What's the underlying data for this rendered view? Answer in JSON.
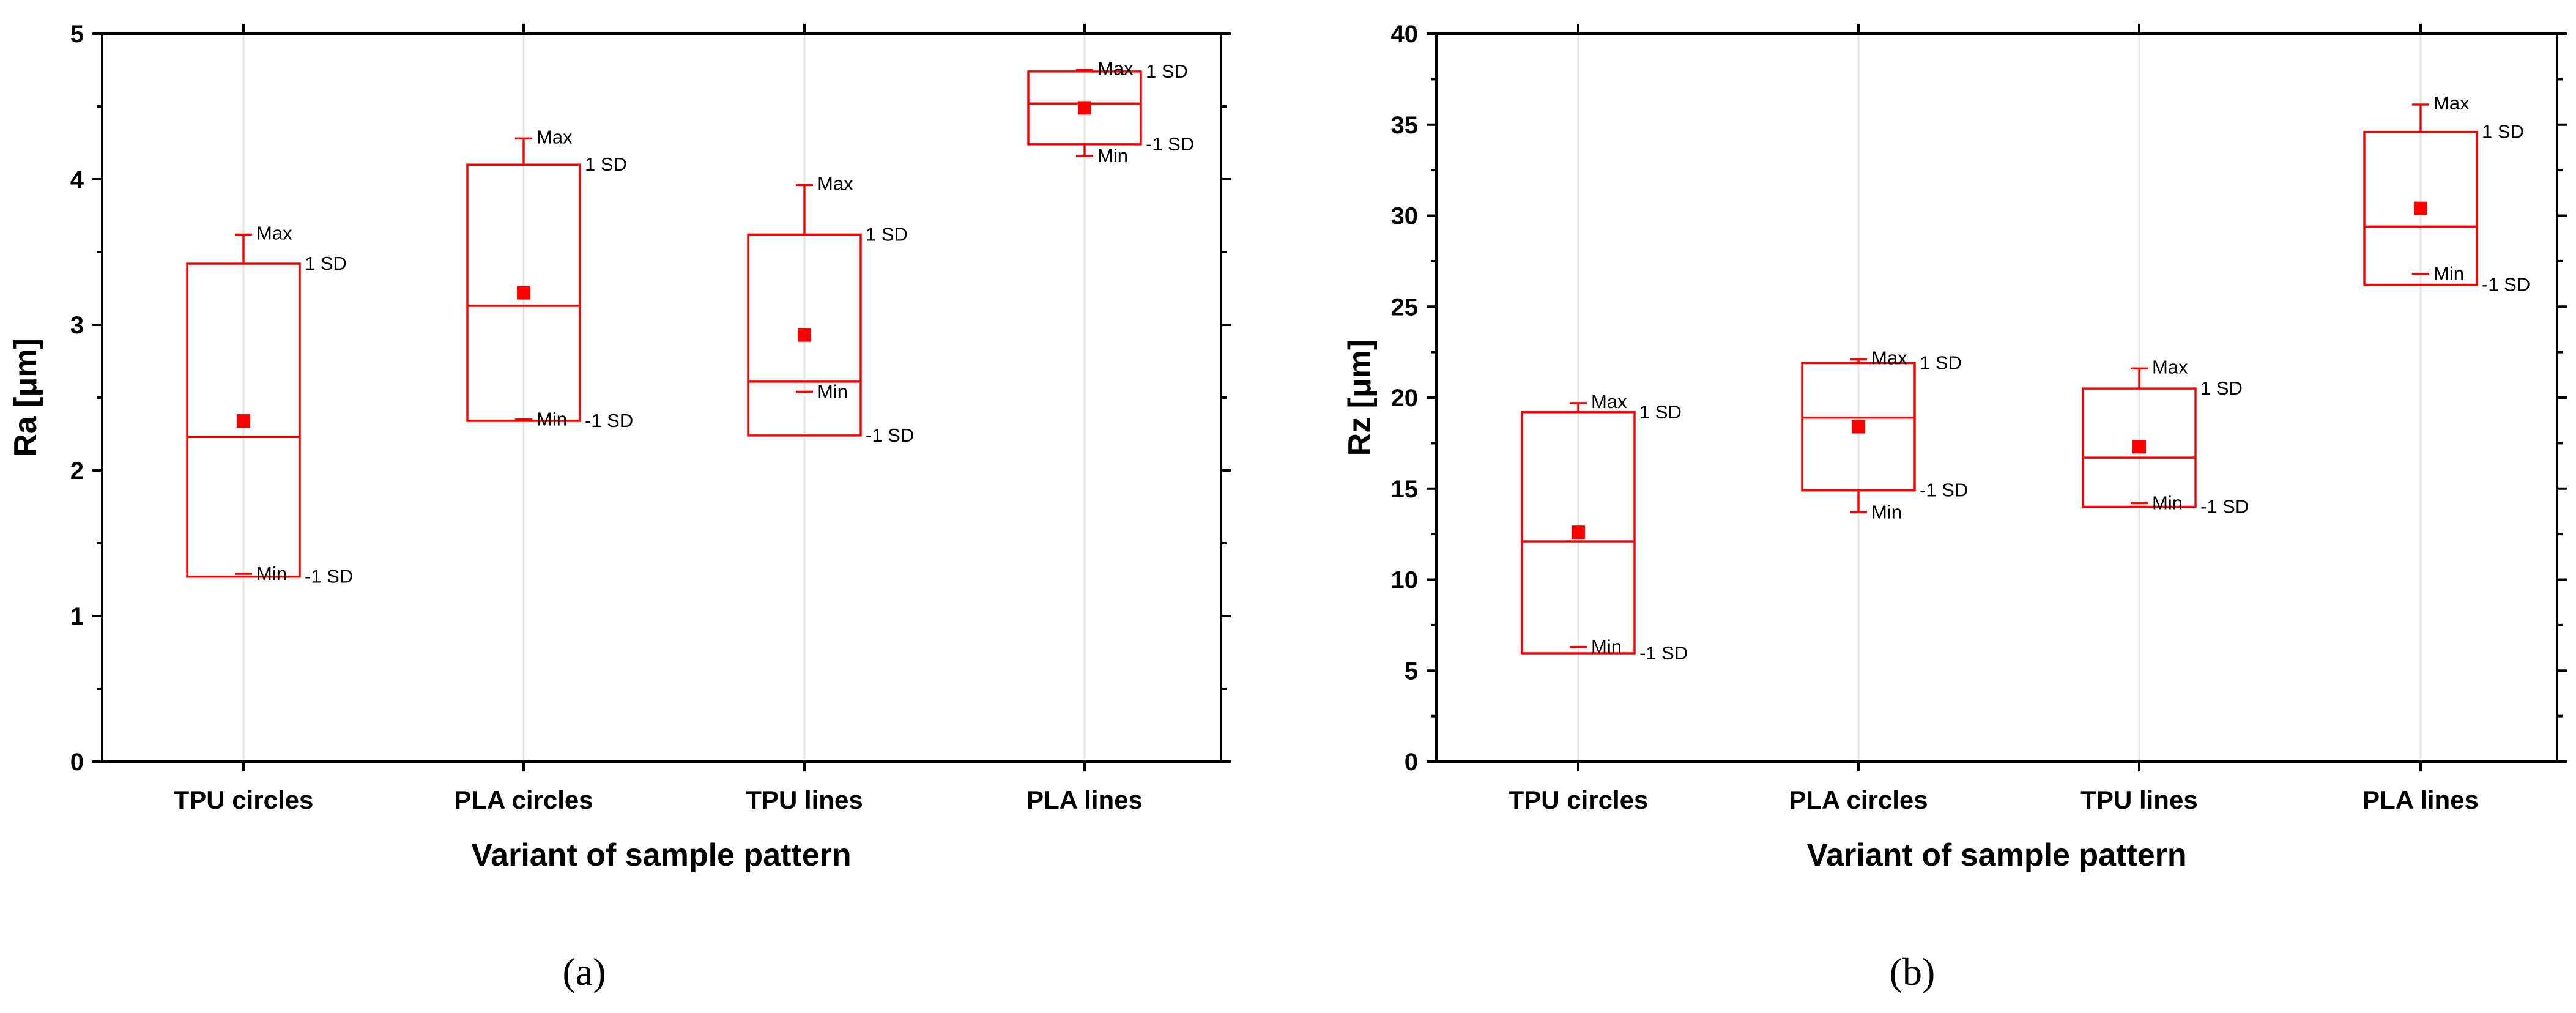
{
  "chart_data": [
    {
      "type": "box",
      "panel_label": "(a)",
      "ylabel": "Ra [μm]",
      "xlabel": "Variant of sample pattern",
      "ylim": [
        0,
        5
      ],
      "yticks": [
        0,
        1,
        2,
        3,
        4,
        5
      ],
      "ytick_labels": [
        "0",
        "1",
        "2",
        "3",
        "4",
        "5"
      ],
      "categories": [
        "TPU circles",
        "PLA circles",
        "TPU lines",
        "PLA lines"
      ],
      "labels": {
        "max": "Max",
        "min": "Min",
        "plus_sd": "1 SD",
        "minus_sd": "-1 SD"
      },
      "boxes": [
        {
          "category": "TPU circles",
          "max": 3.62,
          "plus_sd": 3.42,
          "median": 2.23,
          "mean": 2.34,
          "minus_sd": 1.27,
          "min": 1.29
        },
        {
          "category": "PLA circles",
          "max": 4.28,
          "plus_sd": 4.1,
          "median": 3.13,
          "mean": 3.22,
          "minus_sd": 2.34,
          "min": 2.35
        },
        {
          "category": "TPU lines",
          "max": 3.96,
          "plus_sd": 3.62,
          "median": 2.61,
          "mean": 2.93,
          "minus_sd": 2.24,
          "min": 2.54
        },
        {
          "category": "PLA lines",
          "max": 4.75,
          "plus_sd": 4.74,
          "median": 4.52,
          "mean": 4.49,
          "minus_sd": 4.24,
          "min": 4.16
        }
      ]
    },
    {
      "type": "box",
      "panel_label": "(b)",
      "ylabel": "Rz [μm]",
      "xlabel": "Variant of sample pattern",
      "ylim": [
        0,
        40
      ],
      "yticks": [
        0,
        5,
        10,
        15,
        20,
        25,
        30,
        35,
        40
      ],
      "ytick_labels": [
        "0",
        "5",
        "10",
        "15",
        "20",
        "25",
        "30",
        "35",
        "40"
      ],
      "categories": [
        "TPU circles",
        "PLA circles",
        "TPU lines",
        "PLA lines"
      ],
      "labels": {
        "max": "Max",
        "min": "Min",
        "plus_sd": "1 SD",
        "minus_sd": "-1 SD"
      },
      "boxes": [
        {
          "category": "TPU circles",
          "max": 19.7,
          "plus_sd": 19.2,
          "median": 12.1,
          "mean": 12.6,
          "minus_sd": 5.95,
          "min": 6.3
        },
        {
          "category": "PLA circles",
          "max": 22.1,
          "plus_sd": 21.9,
          "median": 18.9,
          "mean": 18.4,
          "minus_sd": 14.9,
          "min": 13.7
        },
        {
          "category": "TPU lines",
          "max": 21.6,
          "plus_sd": 20.5,
          "median": 16.7,
          "mean": 17.3,
          "minus_sd": 14.0,
          "min": 14.2
        },
        {
          "category": "PLA lines",
          "max": 36.1,
          "plus_sd": 34.6,
          "median": 29.4,
          "mean": 30.4,
          "minus_sd": 26.2,
          "min": 26.8
        }
      ]
    }
  ]
}
